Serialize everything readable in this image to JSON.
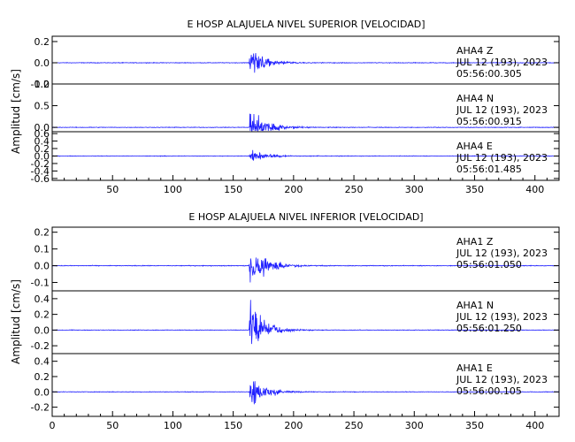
{
  "chart_data": [
    {
      "type": "line",
      "title": "E HOSP ALAJUELA NIVEL SUPERIOR [VELOCIDAD]",
      "ylabel": "Amplitud [cm/s]",
      "xlabel": "",
      "xlim": [
        0,
        420
      ],
      "x_ticks": [
        50,
        100,
        150,
        200,
        250,
        300,
        350,
        400
      ],
      "series_color": "#1f1fff",
      "event_onset_s": 163,
      "panels": [
        {
          "name": "AHA4 Z",
          "station": "AHA4",
          "component": "Z",
          "date": "JUL 12 (193), 2023",
          "time": "05:56:00.305",
          "ylim": [
            -0.2,
            0.25
          ],
          "y_ticks": [
            0.2,
            0.0,
            -0.2
          ],
          "y_tick_labels": [
            "0.2",
            "0.0",
            "-0.2"
          ],
          "peak_amplitude": 0.2,
          "noise_level": 0.004
        },
        {
          "name": "AHA4 N",
          "station": "AHA4",
          "component": "N",
          "date": "JUL 12 (193), 2023",
          "time": "05:56:00.915",
          "ylim": [
            -0.1,
            1.0
          ],
          "y_ticks": [
            1.0,
            0.5,
            0.0
          ],
          "y_tick_labels": [
            "1.0",
            "0.5",
            "0.0"
          ],
          "peak_amplitude": 0.7,
          "noise_level": 0.01
        },
        {
          "name": "AHA4 E",
          "station": "AHA4",
          "component": "E",
          "date": "JUL 12 (193), 2023",
          "time": "05:56:01.485",
          "ylim": [
            -0.65,
            0.65
          ],
          "y_ticks": [
            0.6,
            0.4,
            0.2,
            0.0,
            -0.2,
            -0.4,
            -0.6
          ],
          "y_tick_labels": [
            "0.6",
            "0.4",
            "0.2",
            "0.0",
            "-0.2",
            "-0.4",
            "-0.6"
          ],
          "peak_amplitude": 0.3,
          "noise_level": 0.01
        }
      ]
    },
    {
      "type": "line",
      "title": "E HOSP ALAJUELA NIVEL INFERIOR [VELOCIDAD]",
      "ylabel": "Amplitud [cm/s]",
      "xlabel": "",
      "xlim": [
        0,
        420
      ],
      "x_ticks": [
        0,
        50,
        100,
        150,
        200,
        250,
        300,
        350,
        400
      ],
      "series_color": "#1f1fff",
      "event_onset_s": 163,
      "panels": [
        {
          "name": "AHA1 Z",
          "station": "AHA1",
          "component": "Z",
          "date": "JUL 12 (193), 2023",
          "time": "05:56:01.050",
          "ylim": [
            -0.15,
            0.23
          ],
          "y_ticks": [
            0.2,
            0.1,
            0.0,
            -0.1
          ],
          "y_tick_labels": [
            "0.2",
            "0.1",
            "0.0",
            "-0.1"
          ],
          "peak_amplitude": 0.2,
          "noise_level": 0.003
        },
        {
          "name": "AHA1 N",
          "station": "AHA1",
          "component": "N",
          "date": "JUL 12 (193), 2023",
          "time": "05:56:01.250",
          "ylim": [
            -0.3,
            0.5
          ],
          "y_ticks": [
            0.4,
            0.2,
            0.0,
            -0.2
          ],
          "y_tick_labels": [
            "0.4",
            "0.2",
            "0.0",
            "-0.2"
          ],
          "peak_amplitude": 0.45,
          "noise_level": 0.005
        },
        {
          "name": "AHA1 E",
          "station": "AHA1",
          "component": "E",
          "date": "JUL 12 (193), 2023",
          "time": "05:56:00.105",
          "ylim": [
            -0.32,
            0.5
          ],
          "y_ticks": [
            0.4,
            0.2,
            0.0,
            -0.2
          ],
          "y_tick_labels": [
            "0.4",
            "0.2",
            "0.0",
            "-0.2"
          ],
          "peak_amplitude": 0.3,
          "noise_level": 0.005
        }
      ]
    }
  ]
}
